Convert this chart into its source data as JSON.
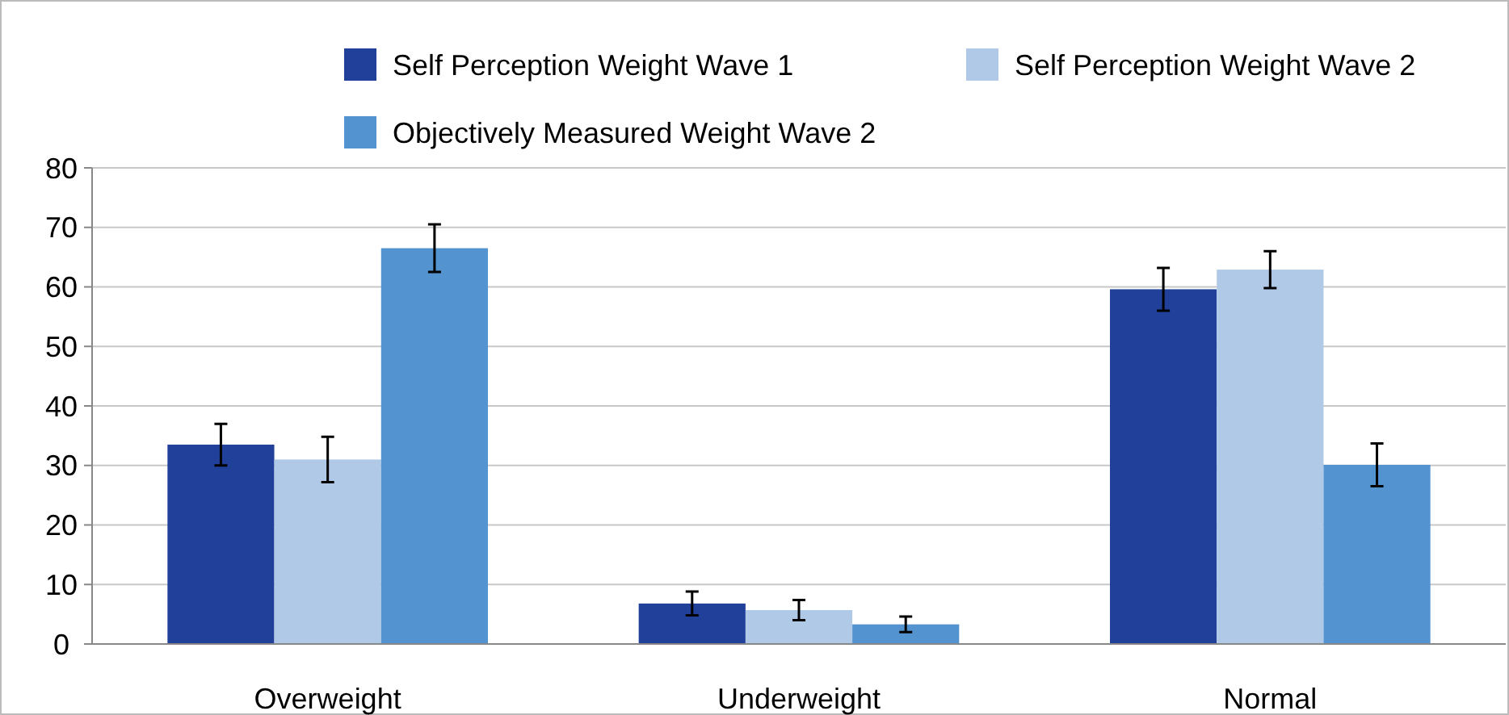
{
  "chart_data": {
    "type": "bar",
    "categories": [
      "Overweight",
      "Underweight",
      "Normal"
    ],
    "series": [
      {
        "name": "Self Perception Weight Wave 1",
        "color": "#21409a",
        "values": [
          33.5,
          6.8,
          59.6
        ],
        "errors": [
          3.5,
          2,
          3.6
        ]
      },
      {
        "name": "Self Perception Weight Wave 2",
        "color": "#b0c9e6",
        "values": [
          31,
          5.7,
          62.9
        ],
        "errors": [
          3.8,
          1.7,
          3.1
        ]
      },
      {
        "name": "Objectively Measured Weight Wave 2",
        "color": "#5393d0",
        "values": [
          66.5,
          3.3,
          30.1
        ],
        "errors": [
          4,
          1.3,
          3.6
        ]
      }
    ],
    "ylim": [
      0,
      80
    ],
    "yticks": [
      0,
      10,
      20,
      30,
      40,
      50,
      60,
      70,
      80
    ],
    "grid": "y",
    "legend": "top right"
  }
}
